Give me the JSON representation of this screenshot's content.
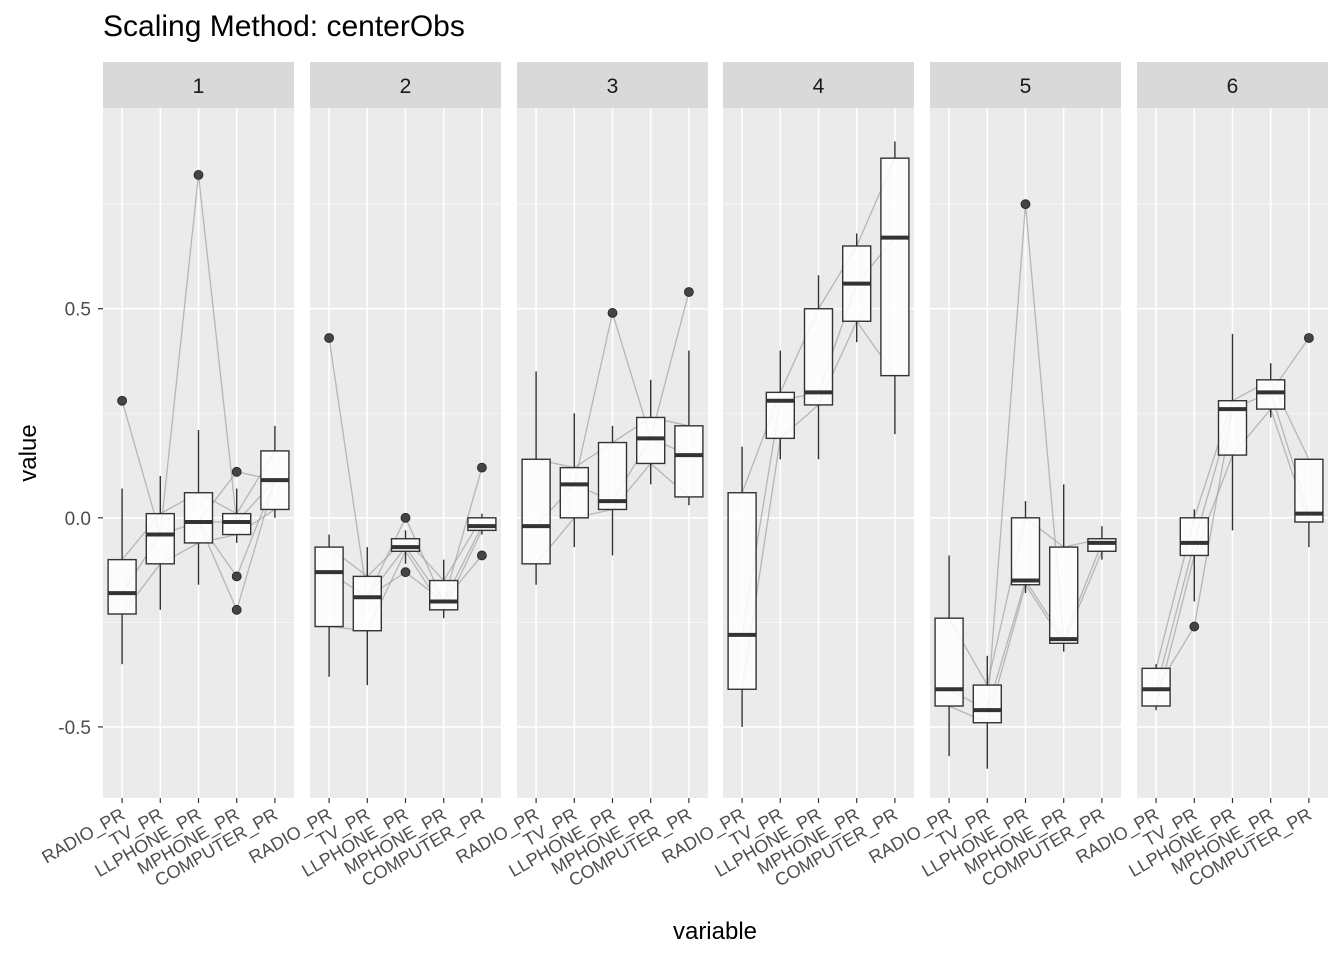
{
  "chart_data": {
    "type": "boxplot",
    "title": "Scaling Method: centerObs",
    "xlabel": "variable",
    "ylabel": "value",
    "ylim": [
      -0.67,
      0.98
    ],
    "yticks": [
      -0.5,
      0.0,
      0.5
    ],
    "ytick_labels": [
      "-0.5",
      "0.0",
      "0.5"
    ],
    "categories": [
      "RADIO_PR",
      "TV_PR",
      "LLPHONE_PR",
      "MPHONE_PR",
      "COMPUTER_PR"
    ],
    "panels": [
      {
        "label": "1",
        "boxes": [
          {
            "q1": -0.23,
            "median": -0.18,
            "q3": -0.1,
            "lo": -0.35,
            "hi": 0.07,
            "outliers": [
              0.28
            ]
          },
          {
            "q1": -0.11,
            "median": -0.04,
            "q3": 0.01,
            "lo": -0.22,
            "hi": 0.1,
            "outliers": []
          },
          {
            "q1": -0.06,
            "median": -0.01,
            "q3": 0.06,
            "lo": -0.16,
            "hi": 0.21,
            "outliers": [
              0.82
            ]
          },
          {
            "q1": -0.04,
            "median": -0.01,
            "q3": 0.01,
            "lo": -0.06,
            "hi": 0.07,
            "outliers": [
              0.11,
              -0.14,
              -0.22
            ]
          },
          {
            "q1": 0.02,
            "median": 0.09,
            "q3": 0.16,
            "lo": 0.0,
            "hi": 0.22,
            "outliers": []
          }
        ]
      },
      {
        "label": "2",
        "boxes": [
          {
            "q1": -0.26,
            "median": -0.13,
            "q3": -0.07,
            "lo": -0.38,
            "hi": -0.04,
            "outliers": [
              0.43
            ]
          },
          {
            "q1": -0.27,
            "median": -0.19,
            "q3": -0.14,
            "lo": -0.4,
            "hi": -0.07,
            "outliers": []
          },
          {
            "q1": -0.08,
            "median": -0.07,
            "q3": -0.05,
            "lo": -0.11,
            "hi": -0.03,
            "outliers": [
              0.0,
              -0.13
            ]
          },
          {
            "q1": -0.22,
            "median": -0.2,
            "q3": -0.15,
            "lo": -0.24,
            "hi": -0.1,
            "outliers": []
          },
          {
            "q1": -0.03,
            "median": -0.02,
            "q3": 0.0,
            "lo": -0.04,
            "hi": 0.01,
            "outliers": [
              0.12,
              -0.09
            ]
          }
        ]
      },
      {
        "label": "3",
        "boxes": [
          {
            "q1": -0.11,
            "median": -0.02,
            "q3": 0.14,
            "lo": -0.16,
            "hi": 0.35,
            "outliers": []
          },
          {
            "q1": 0.0,
            "median": 0.08,
            "q3": 0.12,
            "lo": -0.07,
            "hi": 0.25,
            "outliers": []
          },
          {
            "q1": 0.02,
            "median": 0.04,
            "q3": 0.18,
            "lo": -0.09,
            "hi": 0.22,
            "outliers": [
              0.49
            ]
          },
          {
            "q1": 0.13,
            "median": 0.19,
            "q3": 0.24,
            "lo": 0.08,
            "hi": 0.33,
            "outliers": []
          },
          {
            "q1": 0.05,
            "median": 0.15,
            "q3": 0.22,
            "lo": 0.03,
            "hi": 0.4,
            "outliers": [
              0.54
            ]
          }
        ]
      },
      {
        "label": "4",
        "boxes": [
          {
            "q1": -0.41,
            "median": -0.28,
            "q3": 0.06,
            "lo": -0.5,
            "hi": 0.17,
            "outliers": []
          },
          {
            "q1": 0.19,
            "median": 0.28,
            "q3": 0.3,
            "lo": 0.14,
            "hi": 0.4,
            "outliers": []
          },
          {
            "q1": 0.27,
            "median": 0.3,
            "q3": 0.5,
            "lo": 0.14,
            "hi": 0.58,
            "outliers": []
          },
          {
            "q1": 0.47,
            "median": 0.56,
            "q3": 0.65,
            "lo": 0.42,
            "hi": 0.68,
            "outliers": []
          },
          {
            "q1": 0.34,
            "median": 0.67,
            "q3": 0.86,
            "lo": 0.2,
            "hi": 0.9,
            "outliers": []
          }
        ]
      },
      {
        "label": "5",
        "boxes": [
          {
            "q1": -0.45,
            "median": -0.41,
            "q3": -0.24,
            "lo": -0.57,
            "hi": -0.09,
            "outliers": []
          },
          {
            "q1": -0.49,
            "median": -0.46,
            "q3": -0.4,
            "lo": -0.6,
            "hi": -0.33,
            "outliers": []
          },
          {
            "q1": -0.16,
            "median": -0.15,
            "q3": 0.0,
            "lo": -0.18,
            "hi": 0.04,
            "outliers": [
              0.75
            ]
          },
          {
            "q1": -0.3,
            "median": -0.29,
            "q3": -0.07,
            "lo": -0.32,
            "hi": 0.08,
            "outliers": []
          },
          {
            "q1": -0.08,
            "median": -0.06,
            "q3": -0.05,
            "lo": -0.1,
            "hi": -0.02,
            "outliers": []
          }
        ]
      },
      {
        "label": "6",
        "boxes": [
          {
            "q1": -0.45,
            "median": -0.41,
            "q3": -0.36,
            "lo": -0.46,
            "hi": -0.35,
            "outliers": []
          },
          {
            "q1": -0.09,
            "median": -0.06,
            "q3": 0.0,
            "lo": -0.2,
            "hi": 0.02,
            "outliers": [
              -0.26
            ]
          },
          {
            "q1": 0.15,
            "median": 0.26,
            "q3": 0.28,
            "lo": -0.03,
            "hi": 0.44,
            "outliers": []
          },
          {
            "q1": 0.26,
            "median": 0.3,
            "q3": 0.33,
            "lo": 0.24,
            "hi": 0.37,
            "outliers": []
          },
          {
            "q1": -0.01,
            "median": 0.01,
            "q3": 0.14,
            "lo": -0.07,
            "hi": 0.14,
            "outliers": [
              0.43
            ]
          }
        ]
      }
    ],
    "panel_background": "#ebebeb",
    "strip_background": "#d9d9d9",
    "grid_color": "#ffffff",
    "line_color": "#a0a0a0",
    "box_color": "#333333"
  }
}
